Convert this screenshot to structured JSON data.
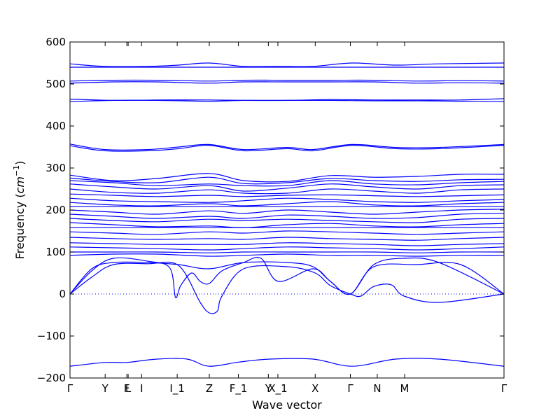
{
  "chart_data": {
    "type": "line",
    "title": "",
    "xlabel": "Wave vector",
    "ylabel": "Frequency",
    "ylabel_unit": "cm",
    "ylabel_unit_exponent": "−1",
    "ylim": [
      -200,
      600
    ],
    "yticks": [
      -200,
      -100,
      0,
      100,
      200,
      300,
      400,
      500,
      600
    ],
    "ytick_labels": [
      "−200",
      "−100",
      "0",
      "100",
      "200",
      "300",
      "400",
      "500",
      "600"
    ],
    "xlim": [
      0,
      1
    ],
    "xticks": [
      {
        "label": "Γ",
        "x": 0.0
      },
      {
        "label": "Y",
        "x": 0.081
      },
      {
        "label": "F",
        "x": 0.131
      },
      {
        "label": "L",
        "x": 0.134
      },
      {
        "label": "I",
        "x": 0.165
      },
      {
        "label": "I_1",
        "x": 0.247
      },
      {
        "label": "Z",
        "x": 0.321
      },
      {
        "label": "F_1",
        "x": 0.388
      },
      {
        "label": "Y",
        "x": 0.457
      },
      {
        "label": "X_1",
        "x": 0.479
      },
      {
        "label": "X",
        "x": 0.565
      },
      {
        "label": "Γ",
        "x": 0.646
      },
      {
        "label": "N",
        "x": 0.708
      },
      {
        "label": "M",
        "x": 0.771
      },
      {
        "label": "Γ",
        "x": 1.0
      }
    ],
    "zero_line": true,
    "grid": false,
    "colors": {
      "bands": "#0000ff",
      "axes": "#000000"
    },
    "series": [
      {
        "x": [
          0,
          0.08,
          0.13,
          0.2,
          0.27,
          0.32,
          0.39,
          0.46,
          0.56,
          0.65,
          0.75,
          0.85,
          1
        ],
        "y": [
          -172,
          -163,
          -163,
          -155,
          -155,
          -172,
          -162,
          -155,
          -155,
          -172,
          -155,
          -155,
          -172
        ]
      },
      {
        "x": [
          0,
          0.1,
          0.2,
          0.32,
          0.4,
          0.5,
          0.6,
          0.7,
          0.8,
          0.9,
          1
        ],
        "y": [
          540,
          540,
          540,
          540,
          540,
          540,
          540,
          540,
          540,
          540,
          540
        ]
      },
      {
        "x": [
          0,
          0.08,
          0.18,
          0.25,
          0.32,
          0.4,
          0.48,
          0.56,
          0.65,
          0.75,
          0.85,
          1
        ],
        "y": [
          548,
          542,
          542,
          545,
          550,
          542,
          542,
          542,
          550,
          545,
          548,
          550
        ]
      },
      {
        "x": [
          0,
          0.1,
          0.2,
          0.32,
          0.4,
          0.5,
          0.6,
          0.7,
          0.8,
          0.9,
          1
        ],
        "y": [
          502,
          505,
          505,
          502,
          505,
          505,
          505,
          505,
          502,
          503,
          502
        ]
      },
      {
        "x": [
          0,
          0.1,
          0.2,
          0.32,
          0.4,
          0.5,
          0.6,
          0.7,
          0.8,
          0.9,
          1
        ],
        "y": [
          507,
          509,
          509,
          507,
          509,
          509,
          509,
          509,
          507,
          508,
          507
        ]
      },
      {
        "x": [
          0,
          0.1,
          0.2,
          0.32,
          0.4,
          0.5,
          0.6,
          0.7,
          0.8,
          0.9,
          1
        ],
        "y": [
          458,
          461,
          461,
          459,
          461,
          461,
          461,
          460,
          460,
          459,
          458
        ]
      },
      {
        "x": [
          0,
          0.1,
          0.2,
          0.32,
          0.4,
          0.5,
          0.6,
          0.7,
          0.8,
          0.9,
          1
        ],
        "y": [
          464,
          461,
          462,
          462,
          461,
          461,
          463,
          462,
          462,
          462,
          465
        ]
      },
      {
        "x": [
          0,
          0.08,
          0.18,
          0.25,
          0.32,
          0.4,
          0.5,
          0.56,
          0.65,
          0.75,
          0.85,
          1
        ],
        "y": [
          353,
          341,
          341,
          346,
          354,
          341,
          346,
          341,
          354,
          346,
          346,
          354
        ]
      },
      {
        "x": [
          0,
          0.08,
          0.18,
          0.25,
          0.32,
          0.4,
          0.5,
          0.56,
          0.65,
          0.75,
          0.85,
          1
        ],
        "y": [
          357,
          344,
          344,
          350,
          356,
          344,
          349,
          344,
          356,
          349,
          349,
          356
        ]
      },
      {
        "x": [
          0,
          0.1,
          0.2,
          0.32,
          0.4,
          0.5,
          0.6,
          0.7,
          0.8,
          0.9,
          1
        ],
        "y": [
          283,
          270,
          275,
          287,
          270,
          268,
          282,
          278,
          280,
          285,
          285
        ]
      },
      {
        "x": [
          0,
          0.1,
          0.2,
          0.32,
          0.4,
          0.5,
          0.6,
          0.7,
          0.8,
          0.9,
          1
        ],
        "y": [
          276,
          268,
          265,
          278,
          263,
          265,
          275,
          270,
          268,
          272,
          273
        ]
      },
      {
        "x": [
          0,
          0.1,
          0.2,
          0.32,
          0.4,
          0.5,
          0.6,
          0.7,
          0.8,
          0.9,
          1
        ],
        "y": [
          270,
          265,
          258,
          262,
          258,
          258,
          270,
          262,
          260,
          265,
          268
        ]
      },
      {
        "x": [
          0,
          0.1,
          0.2,
          0.32,
          0.4,
          0.5,
          0.6,
          0.7,
          0.8,
          0.9,
          1
        ],
        "y": [
          262,
          255,
          250,
          258,
          245,
          252,
          262,
          255,
          250,
          258,
          260
        ]
      },
      {
        "x": [
          0,
          0.1,
          0.2,
          0.32,
          0.4,
          0.5,
          0.6,
          0.7,
          0.8,
          0.9,
          1
        ],
        "y": [
          250,
          242,
          240,
          248,
          240,
          240,
          250,
          245,
          240,
          248,
          250
        ]
      },
      {
        "x": [
          0,
          0.1,
          0.2,
          0.32,
          0.4,
          0.5,
          0.6,
          0.7,
          0.8,
          0.9,
          1
        ],
        "y": [
          238,
          235,
          232,
          235,
          232,
          235,
          236,
          234,
          232,
          234,
          236
        ]
      },
      {
        "x": [
          0,
          0.1,
          0.2,
          0.32,
          0.4,
          0.5,
          0.6,
          0.7,
          0.8,
          0.9,
          1
        ],
        "y": [
          228,
          222,
          220,
          218,
          222,
          228,
          225,
          220,
          218,
          222,
          225
        ]
      },
      {
        "x": [
          0,
          0.1,
          0.2,
          0.32,
          0.4,
          0.5,
          0.6,
          0.7,
          0.8,
          0.9,
          1
        ],
        "y": [
          218,
          212,
          210,
          215,
          210,
          215,
          220,
          212,
          210,
          215,
          218
        ]
      },
      {
        "x": [
          0,
          0.1,
          0.2,
          0.32,
          0.4,
          0.5,
          0.6,
          0.7,
          0.8,
          0.9,
          1
        ],
        "y": [
          208,
          208,
          208,
          208,
          208,
          208,
          208,
          208,
          208,
          208,
          208
        ]
      },
      {
        "x": [
          0,
          0.1,
          0.2,
          0.32,
          0.4,
          0.5,
          0.6,
          0.7,
          0.8,
          0.9,
          1
        ],
        "y": [
          200,
          195,
          190,
          198,
          192,
          200,
          195,
          190,
          195,
          200,
          202
        ]
      },
      {
        "x": [
          0,
          0.1,
          0.2,
          0.32,
          0.4,
          0.5,
          0.6,
          0.7,
          0.8,
          0.9,
          1
        ],
        "y": [
          190,
          185,
          180,
          185,
          180,
          188,
          185,
          180,
          182,
          190,
          192
        ]
      },
      {
        "x": [
          0,
          0.1,
          0.2,
          0.32,
          0.4,
          0.5,
          0.6,
          0.7,
          0.8,
          0.9,
          1
        ],
        "y": [
          180,
          175,
          172,
          178,
          175,
          178,
          175,
          172,
          170,
          178,
          180
        ]
      },
      {
        "x": [
          0,
          0.1,
          0.2,
          0.32,
          0.4,
          0.5,
          0.6,
          0.7,
          0.8,
          0.9,
          1
        ],
        "y": [
          170,
          165,
          160,
          162,
          158,
          165,
          168,
          162,
          160,
          165,
          168
        ]
      },
      {
        "x": [
          0,
          0.1,
          0.2,
          0.32,
          0.4,
          0.5,
          0.6,
          0.7,
          0.8,
          0.9,
          1
        ],
        "y": [
          158,
          158,
          158,
          158,
          158,
          158,
          158,
          158,
          158,
          158,
          158
        ]
      },
      {
        "x": [
          0,
          0.1,
          0.2,
          0.32,
          0.4,
          0.5,
          0.6,
          0.7,
          0.8,
          0.9,
          1
        ],
        "y": [
          148,
          145,
          142,
          148,
          145,
          150,
          148,
          145,
          142,
          145,
          148
        ]
      },
      {
        "x": [
          0,
          0.1,
          0.2,
          0.32,
          0.4,
          0.5,
          0.6,
          0.7,
          0.8,
          0.9,
          1
        ],
        "y": [
          135,
          132,
          130,
          132,
          130,
          135,
          132,
          130,
          128,
          132,
          135
        ]
      },
      {
        "x": [
          0,
          0.1,
          0.2,
          0.32,
          0.4,
          0.5,
          0.6,
          0.7,
          0.8,
          0.9,
          1
        ],
        "y": [
          122,
          120,
          118,
          118,
          118,
          122,
          120,
          118,
          115,
          118,
          120
        ]
      },
      {
        "x": [
          0,
          0.1,
          0.2,
          0.32,
          0.4,
          0.5,
          0.6,
          0.7,
          0.8,
          0.9,
          1
        ],
        "y": [
          112,
          110,
          108,
          105,
          108,
          112,
          110,
          108,
          105,
          108,
          112
        ]
      },
      {
        "x": [
          0,
          0.1,
          0.2,
          0.32,
          0.4,
          0.5,
          0.6,
          0.7,
          0.8,
          0.9,
          1
        ],
        "y": [
          100,
          100,
          100,
          98,
          100,
          100,
          100,
          100,
          98,
          100,
          100
        ]
      },
      {
        "x": [
          0,
          0.1,
          0.2,
          0.32,
          0.4,
          0.5,
          0.6,
          0.7,
          0.8,
          0.9,
          1
        ],
        "y": [
          92,
          95,
          95,
          90,
          92,
          95,
          92,
          92,
          90,
          92,
          92
        ]
      },
      {
        "x": [
          0,
          0.05,
          0.1,
          0.18,
          0.25,
          0.32,
          0.4,
          0.5,
          0.56,
          0.6,
          0.646,
          0.7,
          0.8,
          0.9,
          1
        ],
        "y": [
          0,
          60,
          75,
          75,
          70,
          60,
          75,
          75,
          65,
          30,
          0,
          65,
          70,
          70,
          0
        ]
      },
      {
        "x": [
          0,
          0.05,
          0.1,
          0.18,
          0.23,
          0.243,
          0.255,
          0.28,
          0.3,
          0.321,
          0.35,
          0.4,
          0.44,
          0.48,
          0.56,
          0.6,
          0.646,
          0.7,
          0.77,
          0.85,
          1
        ],
        "y": [
          0,
          55,
          85,
          78,
          62,
          -8,
          20,
          50,
          30,
          25,
          55,
          75,
          85,
          30,
          60,
          30,
          0,
          70,
          85,
          75,
          0
        ]
      },
      {
        "x": [
          0,
          0.05,
          0.1,
          0.18,
          0.25,
          0.3,
          0.321,
          0.34,
          0.35,
          0.4,
          0.5,
          0.565,
          0.6,
          0.646,
          0.67,
          0.7,
          0.74,
          0.77,
          0.85,
          1
        ],
        "y": [
          0,
          40,
          70,
          72,
          68,
          -20,
          -45,
          -40,
          -5,
          60,
          65,
          50,
          20,
          0,
          -5,
          18,
          22,
          -5,
          -20,
          0
        ]
      }
    ]
  }
}
